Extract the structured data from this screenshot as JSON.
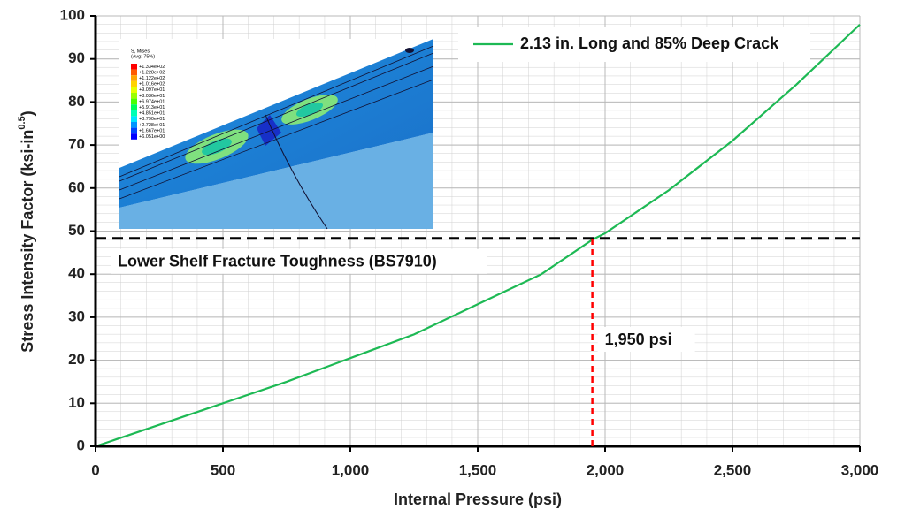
{
  "chart_data": {
    "type": "line",
    "xlabel": "Internal Pressure (psi)",
    "ylabel": "Stress Intensity Factor  (ksi-in",
    "ylabel_sup": "0.5",
    "ylabel_end": ")",
    "x": [
      0,
      250,
      500,
      750,
      1000,
      1250,
      1500,
      1750,
      1950,
      2000,
      2250,
      2500,
      2750,
      3000
    ],
    "series": [
      {
        "name": "2.13 in. Long and 85% Deep Crack",
        "color": "#1db954",
        "values": [
          0,
          5,
          10,
          15,
          20.5,
          26,
          33,
          40,
          48,
          49.5,
          59.5,
          71,
          84,
          98
        ]
      }
    ],
    "xlim": [
      0,
      3000
    ],
    "xticks": [
      0,
      500,
      {
        "value": 1000,
        "label": "1,000"
      },
      {
        "value": 1500,
        "label": "1,500"
      },
      {
        "value": 2000,
        "label": "2,000"
      },
      {
        "value": 2500,
        "label": "2,500"
      },
      {
        "value": 3000,
        "label": "3,000"
      }
    ],
    "ylim": [
      0,
      100
    ],
    "yticks": [
      0,
      10,
      20,
      30,
      40,
      50,
      60,
      70,
      80,
      90,
      100
    ],
    "grid": true,
    "legend": "top-right",
    "hline": {
      "value": 48.3,
      "label": "Lower Shelf Fracture Toughness (BS7910)",
      "color": "#000000"
    },
    "vline": {
      "value": 1950,
      "label": "1,950 psi",
      "color": "#ff0000"
    },
    "inset": {
      "title": "S, Mises",
      "subtitle": "(Avg: 75%)",
      "legend_labels": [
        "+1.334e+02",
        "+1.228e+02",
        "+1.122e+02",
        "+1.016e+02",
        "+9.097e+01",
        "+8.036e+01",
        "+6.974e+01",
        "+5.913e+01",
        "+4.851e+01",
        "+3.790e+01",
        "+2.728e+01",
        "+1.667e+01",
        "+6.051e+00"
      ],
      "legend_colors": [
        "#ff0000",
        "#ff5a00",
        "#ffa500",
        "#ffd200",
        "#e6ff00",
        "#9bff00",
        "#4cff00",
        "#00ff5a",
        "#00ffb4",
        "#00e6ff",
        "#0096ff",
        "#0046ff",
        "#0000ff"
      ]
    }
  }
}
